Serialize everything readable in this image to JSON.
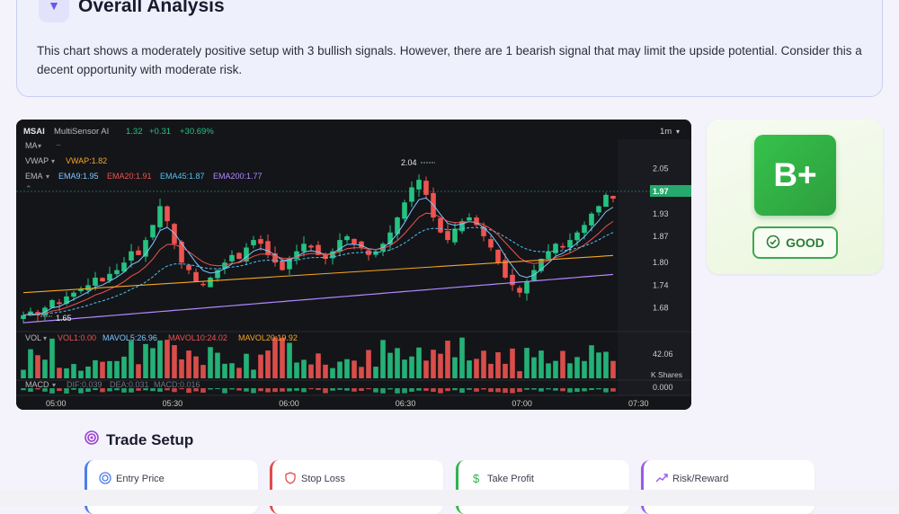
{
  "analysis": {
    "title": "Overall Analysis",
    "text": "This chart shows a moderately positive setup with 3 bullish signals. However, there are 1 bearish signal that may limit the upside potential. Consider this a decent opportunity with moderate risk."
  },
  "chart": {
    "symbol": "MSAI",
    "name": "MultiSensor AI",
    "last": "1.32",
    "change": "+0.31",
    "change_pct": "+30.69%",
    "interval": "1m",
    "ma_label": "MA",
    "vwap": {
      "label": "VWAP",
      "value": "VWAP:1.82"
    },
    "ema": {
      "label": "EMA",
      "ema9": "EMA9:1.95",
      "ema20": "EMA20:1.91",
      "ema45": "EMA45:1.87",
      "ema200": "EMA200:1.77"
    },
    "high_marker": "2.04",
    "low_marker": "1.65",
    "price_badge": "1.97",
    "price_ticks": [
      "2.05",
      "1.99",
      "1.93",
      "1.87",
      "1.80",
      "1.74",
      "1.68"
    ],
    "vol": {
      "label": "VOL",
      "vol1": "VOL1:0.00",
      "mavol5": "MAVOL5:26.96",
      "mavol10": "MAVOL10:24.02",
      "mavol20": "MAVOL20:19.92"
    },
    "vol_ticks": [
      "42.06",
      "K Shares",
      "0.000"
    ],
    "macd": {
      "label": "MACD",
      "dif": "DIF:0.039",
      "dea": "DEA:0.031",
      "macd": "MACD:0.016"
    },
    "time_ticks": [
      "05:00",
      "05:30",
      "06:00",
      "06:30",
      "07:00",
      "07:30"
    ]
  },
  "chart_data": {
    "type": "candlestick",
    "time_ticks": [
      "05:00",
      "05:30",
      "06:00",
      "06:30",
      "07:00",
      "07:30"
    ],
    "price_range": [
      1.65,
      2.08
    ],
    "closes": [
      1.66,
      1.67,
      1.66,
      1.68,
      1.7,
      1.69,
      1.71,
      1.72,
      1.73,
      1.74,
      1.76,
      1.75,
      1.77,
      1.78,
      1.8,
      1.83,
      1.82,
      1.86,
      1.9,
      1.95,
      1.91,
      1.85,
      1.8,
      1.78,
      1.75,
      1.74,
      1.76,
      1.78,
      1.8,
      1.82,
      1.81,
      1.84,
      1.86,
      1.85,
      1.82,
      1.8,
      1.78,
      1.81,
      1.83,
      1.85,
      1.84,
      1.82,
      1.81,
      1.83,
      1.86,
      1.87,
      1.85,
      1.84,
      1.82,
      1.83,
      1.85,
      1.88,
      1.92,
      1.96,
      2.0,
      2.02,
      1.98,
      1.92,
      1.88,
      1.86,
      1.89,
      1.91,
      1.92,
      1.9,
      1.87,
      1.84,
      1.8,
      1.76,
      1.74,
      1.72,
      1.75,
      1.78,
      1.81,
      1.83,
      1.85,
      1.84,
      1.86,
      1.88,
      1.9,
      1.93,
      1.95,
      1.98,
      1.97
    ],
    "series": [
      {
        "name": "EMA9",
        "value": 1.95
      },
      {
        "name": "EMA20",
        "value": 1.91
      },
      {
        "name": "EMA45",
        "value": 1.87
      },
      {
        "name": "EMA200",
        "value": 1.77
      },
      {
        "name": "VWAP",
        "value": 1.82
      }
    ],
    "volume_max": 42.06
  },
  "grade": {
    "letter": "B+",
    "label": "GOOD"
  },
  "trade_setup": {
    "title": "Trade Setup",
    "cards": [
      {
        "label": "Entry Price",
        "color": "#4c7de8"
      },
      {
        "label": "Stop Loss",
        "color": "#e04b4b"
      },
      {
        "label": "Take Profit",
        "color": "#2fb450"
      },
      {
        "label": "Risk/Reward",
        "color": "#9b59e8"
      }
    ]
  },
  "colors": {
    "up": "#26c281",
    "down": "#ef5350",
    "accent": "#6b57e8"
  }
}
